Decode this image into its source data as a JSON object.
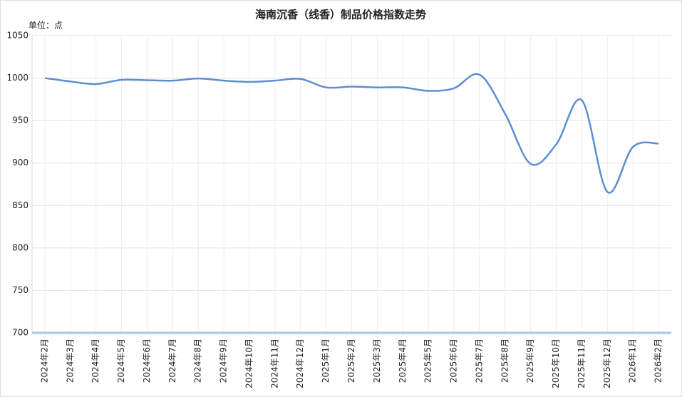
{
  "chart_data": {
    "type": "line",
    "title": "海南沉香（线香）制品价格指数走势",
    "y_label": "单位：点",
    "categories": [
      "2024年2月",
      "2024年3月",
      "2024年4月",
      "2024年5月",
      "2024年6月",
      "2024年7月",
      "2024年8月",
      "2024年9月",
      "2024年10月",
      "2024年11月",
      "2024年12月",
      "2025年1月",
      "2025年2月",
      "2025年3月",
      "2025年4月",
      "2025年5月",
      "2025年6月",
      "2025年7月",
      "2025年8月",
      "2025年9月",
      "2025年10月",
      "2025年11月",
      "2025年12月",
      "2026年1月",
      "2026年2月"
    ],
    "values": [
      1000,
      996,
      993,
      998,
      997.5,
      997,
      999.5,
      997,
      995.5,
      997,
      999,
      989,
      990,
      989,
      989,
      985,
      988,
      1004,
      958,
      899,
      922,
      974,
      866,
      919,
      923
    ],
    "color": "#5b8fd0",
    "ylim": [
      700,
      1050
    ],
    "yticks": [
      700,
      750,
      800,
      850,
      900,
      950,
      1000,
      1050
    ],
    "grid": true
  }
}
